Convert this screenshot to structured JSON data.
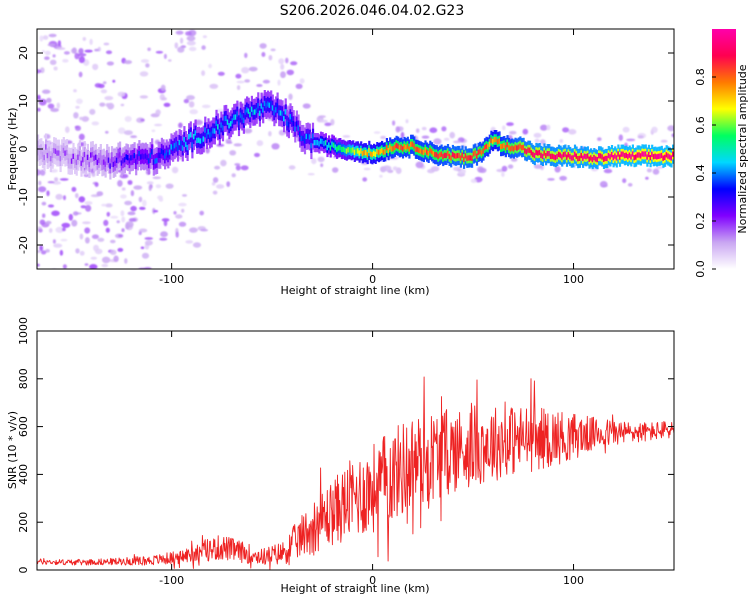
{
  "chart_data": [
    {
      "type": "heatmap",
      "title": "S206.2026.046.04.02.G23",
      "xlabel": "Height of straight line (km)",
      "ylabel": "Frequency (Hz)",
      "xlim": [
        -167,
        150
      ],
      "ylim": [
        -25,
        25
      ],
      "xticks": [
        -100,
        0,
        100
      ],
      "yticks": [
        -20,
        -10,
        0,
        10,
        20
      ],
      "colorbar": {
        "label": "Normalized spectral amplitude",
        "range": [
          0,
          1
        ],
        "ticks": [
          "0.0",
          "0.2",
          "0.4",
          "0.6",
          "0.8"
        ],
        "colors": [
          "#ffffff",
          "#c9a6f2",
          "#8000ff",
          "#0000ff",
          "#00d8ff",
          "#00ff60",
          "#ffff00",
          "#ff7a00",
          "#ff0050",
          "#ff00aa"
        ]
      },
      "ridge": {
        "x": [
          -167,
          -150,
          -135,
          -120,
          -105,
          -95,
          -85,
          -75,
          -65,
          -55,
          -48,
          -42,
          -38,
          -33,
          -25,
          -15,
          -5,
          0,
          10,
          20,
          30,
          40,
          48,
          55,
          60,
          65,
          72,
          80,
          90,
          100,
          110,
          120,
          130,
          140,
          148
        ],
        "y": [
          -0.5,
          -1.5,
          -2.5,
          -2.0,
          -1.5,
          1.0,
          3.0,
          5.0,
          7.0,
          8.5,
          8.0,
          6.0,
          4.0,
          2.0,
          1.0,
          0.0,
          -0.5,
          -1.0,
          0.5,
          0.5,
          -1.0,
          -1.5,
          -2.0,
          0.0,
          2.0,
          0.5,
          0.5,
          -1.0,
          -1.5,
          -1.5,
          -2.0,
          -1.5,
          -1.5,
          -1.5,
          -1.5
        ],
        "amplitude": [
          0.15,
          0.15,
          0.2,
          0.3,
          0.35,
          0.4,
          0.42,
          0.42,
          0.42,
          0.42,
          0.4,
          0.4,
          0.35,
          0.38,
          0.45,
          0.55,
          0.7,
          0.7,
          0.8,
          0.8,
          0.8,
          0.85,
          0.85,
          0.8,
          0.75,
          0.8,
          0.85,
          0.9,
          0.9,
          0.92,
          0.92,
          0.95,
          0.95,
          0.95,
          0.95
        ]
      }
    },
    {
      "type": "line",
      "xlabel": "Height of straight line (km)",
      "ylabel": "SNR (10 * v/v)",
      "xlim": [
        -167,
        150
      ],
      "ylim": [
        0,
        1000
      ],
      "xticks": [
        -100,
        0,
        100
      ],
      "yticks": [
        0,
        200,
        400,
        600,
        800,
        1000
      ],
      "color": "#ee2222",
      "series": [
        {
          "name": "SNR",
          "x": [
            -167,
            -150,
            -130,
            -110,
            -95,
            -85,
            -75,
            -65,
            -55,
            -45,
            -38,
            -30,
            -20,
            -10,
            0,
            10,
            20,
            30,
            40,
            50,
            60,
            70,
            80,
            90,
            100,
            110,
            120,
            130,
            140,
            150
          ],
          "values": [
            35,
            32,
            35,
            40,
            55,
            80,
            95,
            75,
            55,
            70,
            120,
            180,
            240,
            300,
            340,
            400,
            450,
            480,
            500,
            520,
            530,
            545,
            550,
            555,
            560,
            570,
            575,
            575,
            580,
            590
          ],
          "noise_amplitude": [
            12,
            12,
            14,
            20,
            30,
            45,
            55,
            45,
            35,
            50,
            80,
            110,
            140,
            170,
            190,
            200,
            200,
            190,
            180,
            170,
            160,
            150,
            140,
            120,
            100,
            70,
            55,
            45,
            40,
            38
          ]
        }
      ]
    }
  ]
}
